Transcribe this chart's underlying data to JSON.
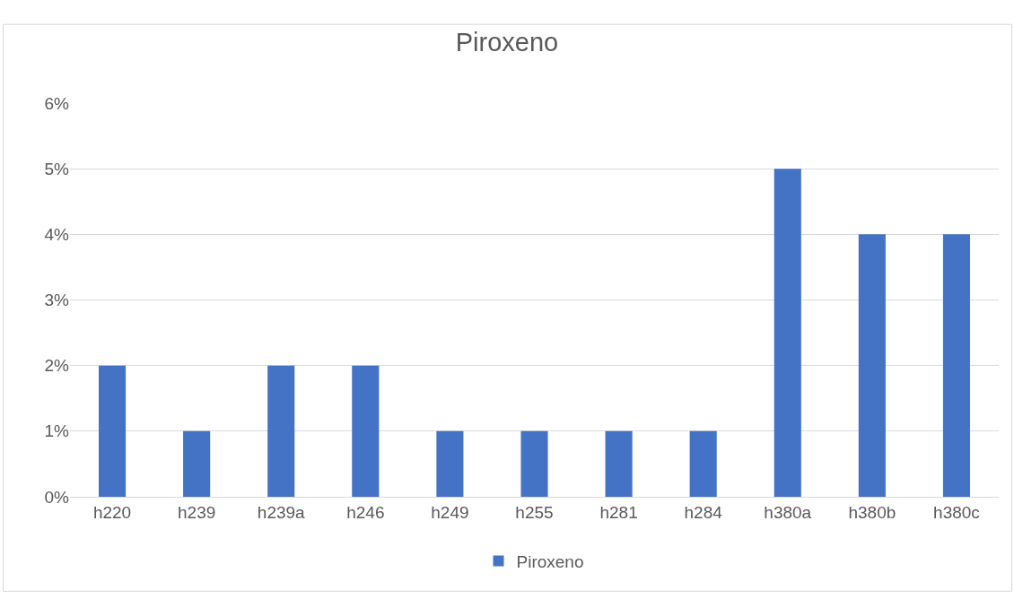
{
  "chart_data": {
    "type": "bar",
    "title": "Piroxeno",
    "categories": [
      "h220",
      "h239",
      "h239a",
      "h246",
      "h249",
      "h255",
      "h281",
      "h284",
      "h380a",
      "h380b",
      "h380c"
    ],
    "series": [
      {
        "name": "Piroxeno",
        "color": "#4472c4",
        "values": [
          2,
          1,
          2,
          2,
          1,
          1,
          1,
          1,
          5,
          4,
          4
        ]
      }
    ],
    "ylim": [
      0,
      6
    ],
    "yticks": [
      {
        "value": 0,
        "label": "0%"
      },
      {
        "value": 1,
        "label": "1%"
      },
      {
        "value": 2,
        "label": "2%"
      },
      {
        "value": 3,
        "label": "3%"
      },
      {
        "value": 4,
        "label": "4%"
      },
      {
        "value": 5,
        "label": "5%"
      },
      {
        "value": 6,
        "label": "6%"
      }
    ],
    "grid": "y",
    "legend": "bottom"
  }
}
